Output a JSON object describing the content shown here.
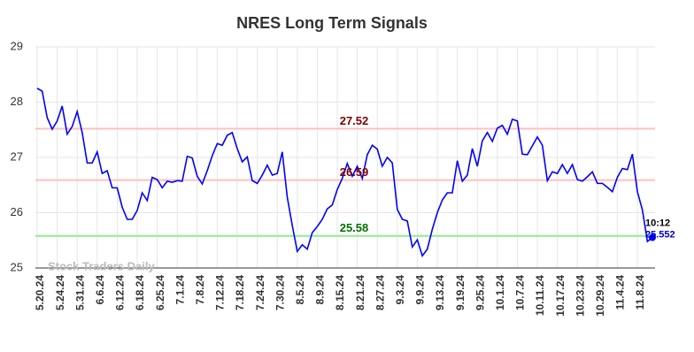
{
  "chart_data": {
    "type": "line",
    "title": "NRES Long Term Signals",
    "watermark": "Stock Traders Daily",
    "categories": [
      "5.20.24",
      null,
      null,
      null,
      "5.24.24",
      null,
      null,
      null,
      "5.31.24",
      null,
      null,
      null,
      "6.6.24",
      null,
      null,
      null,
      "6.12.24",
      null,
      null,
      null,
      "6.18.24",
      null,
      null,
      null,
      "6.25.24",
      null,
      null,
      null,
      "7.1.24",
      null,
      null,
      null,
      "7.8.24",
      null,
      null,
      null,
      "7.12.24",
      null,
      null,
      null,
      "7.18.24",
      null,
      null,
      null,
      "7.24.24",
      null,
      null,
      null,
      "7.30.24",
      null,
      null,
      null,
      "8.5.24",
      null,
      null,
      null,
      "8.9.24",
      null,
      null,
      null,
      "8.15.24",
      null,
      null,
      null,
      "8.21.24",
      null,
      null,
      null,
      "8.27.24",
      null,
      null,
      null,
      "9.3.24",
      null,
      null,
      null,
      "9.9.24",
      null,
      null,
      null,
      "9.13.24",
      null,
      null,
      null,
      "9.19.24",
      null,
      null,
      null,
      "9.25.24",
      null,
      null,
      null,
      "10.1.24",
      null,
      null,
      null,
      "10.7.24",
      null,
      null,
      null,
      "10.11.24",
      null,
      null,
      null,
      "10.17.24",
      null,
      null,
      null,
      "10.23.24",
      null,
      null,
      null,
      "10.29.24",
      null,
      null,
      null,
      "11.4.24",
      null,
      null,
      null,
      "11.8.24",
      null,
      null,
      null
    ],
    "series": [
      {
        "color": "#0000ff",
        "values": [
          28.25,
          28.2,
          27.72,
          27.51,
          27.66,
          27.93,
          27.42,
          27.56,
          27.83,
          27.45,
          26.9,
          26.9,
          27.1,
          26.71,
          26.76,
          26.45,
          26.45,
          26.1,
          25.88,
          25.88,
          26.04,
          26.36,
          26.22,
          26.64,
          26.6,
          26.45,
          26.57,
          26.55,
          26.58,
          26.57,
          27.02,
          26.99,
          26.66,
          26.52,
          26.76,
          27.03,
          27.25,
          27.22,
          27.4,
          27.45,
          27.16,
          26.92,
          27.01,
          26.58,
          26.53,
          26.68,
          26.86,
          26.68,
          26.71,
          27.1,
          26.28,
          25.77,
          25.3,
          25.42,
          25.34,
          25.64,
          25.75,
          25.88,
          26.07,
          26.14,
          26.42,
          26.62,
          26.89,
          26.66,
          26.84,
          26.62,
          27.05,
          27.22,
          27.15,
          26.84,
          27.0,
          26.9,
          26.06,
          25.88,
          25.85,
          25.38,
          25.51,
          25.22,
          25.34,
          25.7,
          26.0,
          26.23,
          26.36,
          26.36,
          26.94,
          26.57,
          26.68,
          27.16,
          26.84,
          27.3,
          27.45,
          27.29,
          27.53,
          27.58,
          27.42,
          27.69,
          27.66,
          27.06,
          27.05,
          27.21,
          27.37,
          27.22,
          26.58,
          26.74,
          26.71,
          26.87,
          26.71,
          26.87,
          26.6,
          26.57,
          26.65,
          26.74,
          26.53,
          26.53,
          26.46,
          26.38,
          26.64,
          26.8,
          26.78,
          27.06,
          26.38,
          26.05,
          25.48,
          25.552
        ]
      }
    ],
    "last_time": "10:12",
    "hlines": [
      {
        "value": 27.52,
        "color": "#ffc0c0",
        "label_color": "#800000"
      },
      {
        "value": 26.59,
        "color": "#ffc0c0",
        "label_color": "#800000"
      },
      {
        "value": 25.58,
        "color": "#90ee90",
        "label_color": "#007000"
      }
    ],
    "ylim": [
      25,
      29
    ],
    "yticks": [
      25,
      26,
      27,
      28,
      29
    ],
    "grid": true
  }
}
